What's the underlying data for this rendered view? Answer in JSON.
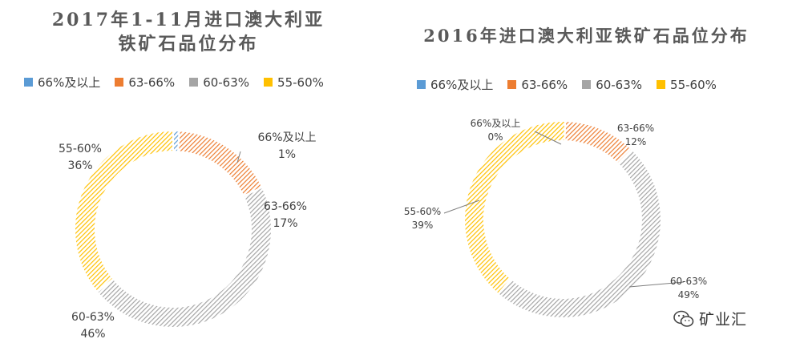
{
  "left": {
    "title_line1": "2017年1-11月进口澳大利亚",
    "title_line2": "铁矿石品位分布"
  },
  "right": {
    "title": "2016年进口澳大利亚铁矿石品位分布"
  },
  "legend": [
    {
      "label": "66%及以上",
      "color": "#5b9bd5"
    },
    {
      "label": "63-66%",
      "color": "#ed7d31"
    },
    {
      "label": "60-63%",
      "color": "#a5a5a5"
    },
    {
      "label": "55-60%",
      "color": "#ffc000"
    }
  ],
  "chart_data": [
    {
      "type": "pie",
      "title": "2017年1-11月进口澳大利亚铁矿石品位分布",
      "categories": [
        "66%及以上",
        "63-66%",
        "60-63%",
        "55-60%"
      ],
      "values": [
        1,
        17,
        46,
        36
      ],
      "labels": [
        "1%",
        "17%",
        "46%",
        "36%"
      ],
      "colors": [
        "#5b9bd5",
        "#ed7d31",
        "#a5a5a5",
        "#ffc000"
      ],
      "legend_position": "top"
    },
    {
      "type": "pie",
      "title": "2016年进口澳大利亚铁矿石品位分布",
      "categories": [
        "66%及以上",
        "63-66%",
        "60-63%",
        "55-60%"
      ],
      "values": [
        0,
        12,
        49,
        39
      ],
      "labels": [
        "0%",
        "12%",
        "49%",
        "39%"
      ],
      "colors": [
        "#5b9bd5",
        "#ed7d31",
        "#a5a5a5",
        "#ffc000"
      ],
      "legend_position": "top"
    }
  ],
  "watermark": {
    "icon": "wechat-icon",
    "text": "矿业汇"
  }
}
